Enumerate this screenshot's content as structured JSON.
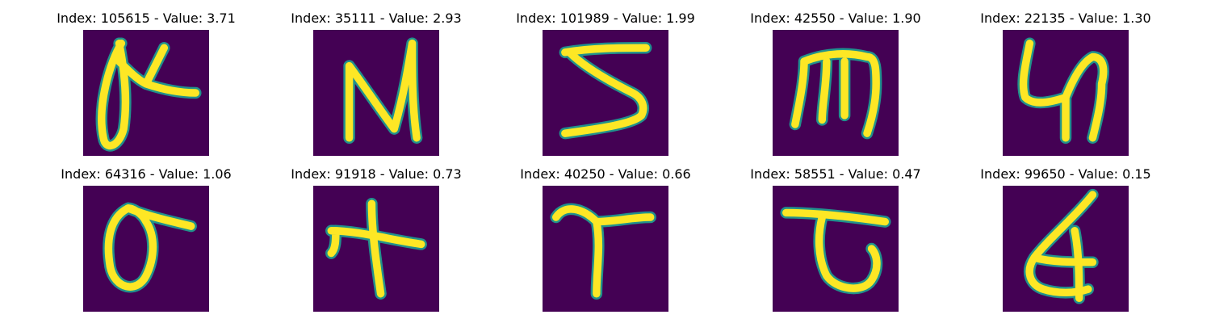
{
  "panels": [
    {
      "title": "Index: 105615 - Value: 3.71",
      "glyph": "handwritten-character"
    },
    {
      "title": "Index: 35111 - Value: 2.93",
      "glyph": "handwritten-character"
    },
    {
      "title": "Index: 101989 - Value: 1.99",
      "glyph": "handwritten-character"
    },
    {
      "title": "Index: 42550 - Value: 1.90",
      "glyph": "handwritten-character"
    },
    {
      "title": "Index: 22135 - Value: 1.30",
      "glyph": "handwritten-character"
    },
    {
      "title": "Index: 64316 - Value: 1.06",
      "glyph": "handwritten-character"
    },
    {
      "title": "Index: 91918 - Value: 0.73",
      "glyph": "handwritten-character"
    },
    {
      "title": "Index: 40250 - Value: 0.66",
      "glyph": "handwritten-character"
    },
    {
      "title": "Index: 58551 - Value: 0.47",
      "glyph": "handwritten-character"
    },
    {
      "title": "Index: 99650 - Value: 0.15",
      "glyph": "handwritten-character"
    }
  ],
  "colors": {
    "background": "#440154",
    "stroke_core": "#fde725",
    "stroke_edge": "#21918c"
  }
}
